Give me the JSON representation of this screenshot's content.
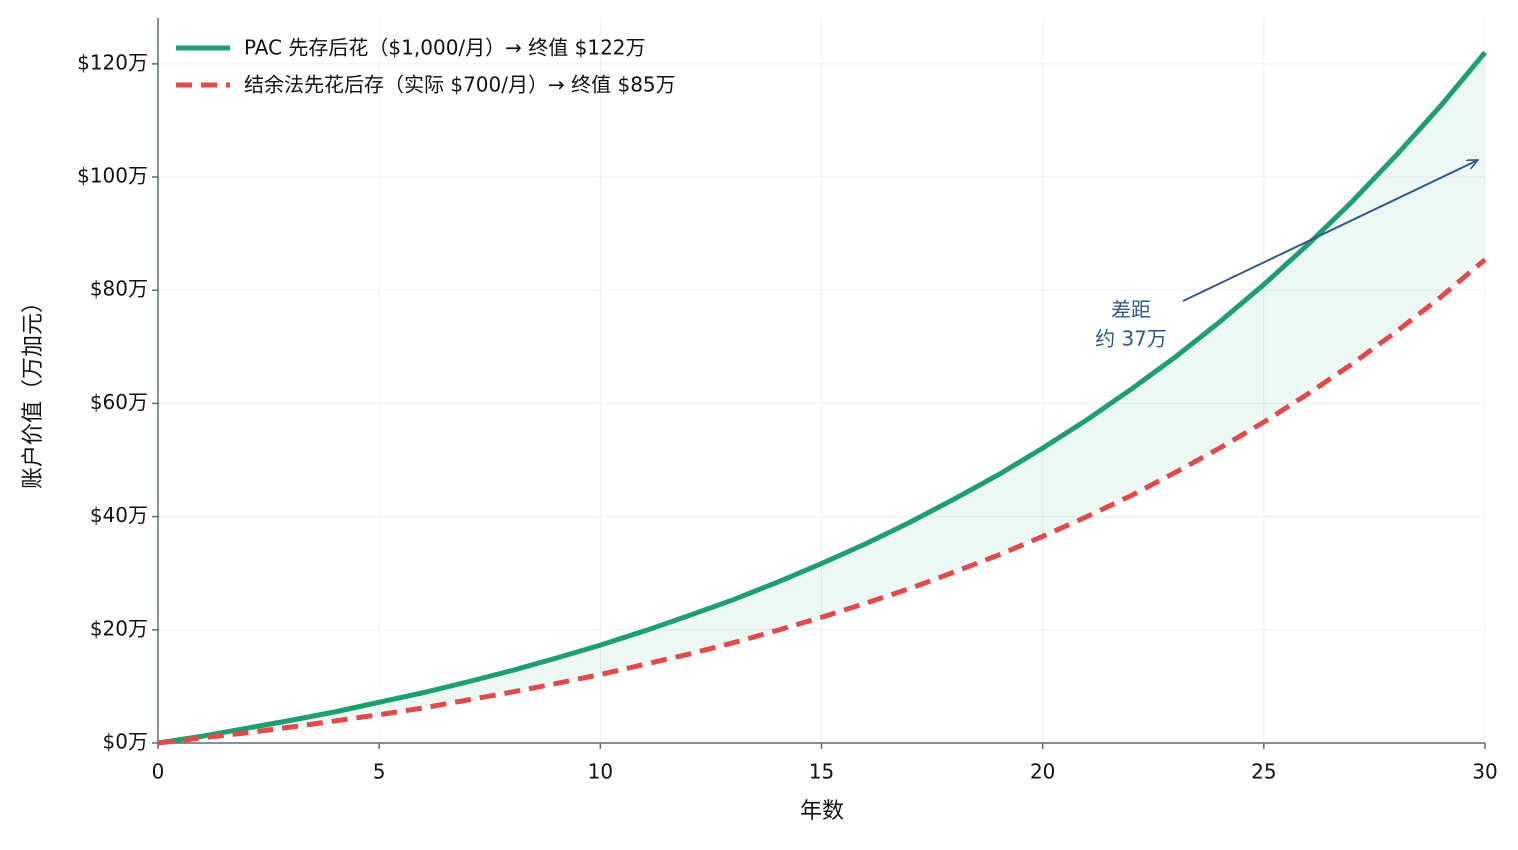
{
  "chart_data": {
    "type": "line",
    "xlabel": "年数",
    "ylabel": "账户价值（万加元）",
    "x": [
      0,
      1,
      2,
      3,
      4,
      5,
      6,
      7,
      8,
      9,
      10,
      11,
      12,
      13,
      14,
      15,
      16,
      17,
      18,
      19,
      20,
      21,
      22,
      23,
      24,
      25,
      26,
      27,
      28,
      29,
      30
    ],
    "series": [
      {
        "name": "PAC 先存后花（$1,000/月）→ 终值 $122万",
        "color": "#1f9e6f",
        "linestyle": "solid",
        "values": [
          0,
          1.2,
          2.6,
          4.0,
          5.5,
          7.2,
          8.9,
          10.8,
          12.8,
          15.0,
          17.3,
          19.8,
          22.5,
          25.3,
          28.4,
          31.7,
          35.2,
          39.0,
          43.1,
          47.4,
          52.1,
          57.1,
          62.5,
          68.2,
          74.4,
          81.0,
          88.1,
          95.7,
          103.9,
          112.6,
          122.0
        ]
      },
      {
        "name": "结余法先花后存（实际 $700/月）→ 终值 $85万",
        "color": "#e04a4a",
        "linestyle": "dashed",
        "values": [
          0,
          0.9,
          1.8,
          2.8,
          3.9,
          5.0,
          6.2,
          7.6,
          9.0,
          10.5,
          12.1,
          13.9,
          15.7,
          17.7,
          19.9,
          22.2,
          24.7,
          27.3,
          30.2,
          33.2,
          36.5,
          40.0,
          43.7,
          47.8,
          52.1,
          56.7,
          61.7,
          67.0,
          72.7,
          78.8,
          85.4
        ]
      }
    ],
    "fill_between": {
      "color": "#1f9e6f",
      "opacity": 0.08
    },
    "annotation": [
      "差距",
      "约 37万"
    ],
    "xlim": [
      0,
      30
    ],
    "xticks": [
      0,
      5,
      10,
      15,
      20,
      25,
      30
    ],
    "ylim": [
      0,
      128.1
    ],
    "yticks": [
      {
        "value": 0,
        "label": "$0万"
      },
      {
        "value": 20,
        "label": "$20万"
      },
      {
        "value": 40,
        "label": "$40万"
      },
      {
        "value": 60,
        "label": "$60万"
      },
      {
        "value": 80,
        "label": "$80万"
      },
      {
        "value": 100,
        "label": "$100万"
      },
      {
        "value": 120,
        "label": "$120万"
      }
    ],
    "grid": true,
    "legend": "upper-left"
  }
}
